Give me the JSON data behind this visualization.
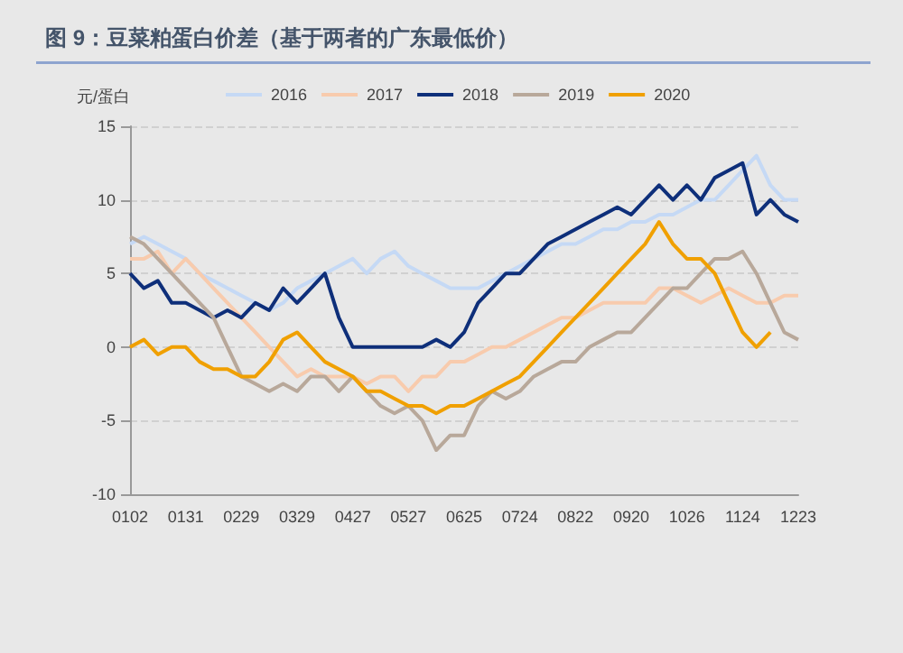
{
  "chart_data": {
    "type": "line",
    "title": "图 9：豆菜粕蛋白价差（基于两者的广东最低价）",
    "ylabel": "元/蛋白",
    "categories": [
      "0102",
      null,
      null,
      null,
      "0131",
      null,
      null,
      null,
      "0229",
      null,
      null,
      null,
      "0329",
      null,
      null,
      null,
      "0427",
      null,
      null,
      null,
      "0527",
      null,
      null,
      null,
      "0625",
      null,
      null,
      null,
      "0724",
      null,
      null,
      null,
      "0822",
      null,
      null,
      null,
      "0920",
      null,
      null,
      null,
      "1026",
      null,
      null,
      null,
      "1124",
      null,
      null,
      null,
      "1223"
    ],
    "series": [
      {
        "name": "2016",
        "color": "#c5d9f5",
        "values": [
          7,
          7.5,
          7,
          6.5,
          6,
          5,
          4.5,
          4,
          3.5,
          3,
          2.5,
          3,
          4,
          4.5,
          5,
          5.5,
          6,
          5,
          6,
          6.5,
          5.5,
          5,
          4.5,
          4,
          4,
          4,
          4.5,
          5,
          5.5,
          6,
          6.5,
          7,
          7,
          7.5,
          8,
          8,
          8.5,
          8.5,
          9,
          9,
          9.5,
          10,
          10,
          11,
          12,
          13,
          11,
          10,
          10
        ]
      },
      {
        "name": "2017",
        "color": "#f8cbad",
        "values": [
          6,
          6,
          6.5,
          5,
          6,
          5,
          4,
          3,
          2,
          1,
          0,
          -1,
          -2,
          -1.5,
          -2,
          -2,
          -2,
          -2.5,
          -2,
          -2,
          -3,
          -2,
          -2,
          -1,
          -1,
          -0.5,
          0,
          0,
          0.5,
          1,
          1.5,
          2,
          2,
          2.5,
          3,
          3,
          3,
          3,
          4,
          4,
          3.5,
          3,
          3.5,
          4,
          3.5,
          3,
          3,
          3.5,
          3.5
        ]
      },
      {
        "name": "2018",
        "color": "#0e2f7a",
        "values": [
          5,
          4,
          4.5,
          3,
          3,
          2.5,
          2,
          2.5,
          2,
          3,
          2.5,
          4,
          3,
          4,
          5,
          2,
          0,
          0,
          0,
          0,
          0,
          0,
          0.5,
          0,
          1,
          3,
          4,
          5,
          5,
          6,
          7,
          7.5,
          8,
          8.5,
          9,
          9.5,
          9,
          10,
          11,
          10,
          11,
          10,
          11.5,
          12,
          12.5,
          9,
          10,
          9,
          8.5
        ]
      },
      {
        "name": "2019",
        "color": "#b8a89a",
        "values": [
          7.5,
          7,
          6,
          5,
          4,
          3,
          2,
          0,
          -2,
          -2.5,
          -3,
          -2.5,
          -3,
          -2,
          -2,
          -3,
          -2,
          -3,
          -4,
          -4.5,
          -4,
          -5,
          -7,
          -6,
          -6,
          -4,
          -3,
          -3.5,
          -3,
          -2,
          -1.5,
          -1,
          -1,
          0,
          0.5,
          1,
          1,
          2,
          3,
          4,
          4,
          5,
          6,
          6,
          6.5,
          5,
          3,
          1,
          0.5
        ]
      },
      {
        "name": "2020",
        "color": "#f0a000",
        "values": [
          0,
          0.5,
          -0.5,
          0,
          0,
          -1,
          -1.5,
          -1.5,
          -2,
          -2,
          -1,
          0.5,
          1,
          0,
          -1,
          -1.5,
          -2,
          -3,
          -3,
          -3.5,
          -4,
          -4,
          -4.5,
          -4,
          -4,
          -3.5,
          -3,
          -2.5,
          -2,
          -1,
          0,
          1,
          2,
          3,
          4,
          5,
          6,
          7,
          8.5,
          7,
          6,
          6,
          5,
          3,
          1,
          0,
          1,
          null,
          null
        ]
      }
    ],
    "ylim": [
      -10,
      15
    ],
    "yticks": [
      -10,
      -5,
      0,
      5,
      10,
      15
    ],
    "grid": "y",
    "legend": "top",
    "marker": "none",
    "line_style": "solid"
  }
}
